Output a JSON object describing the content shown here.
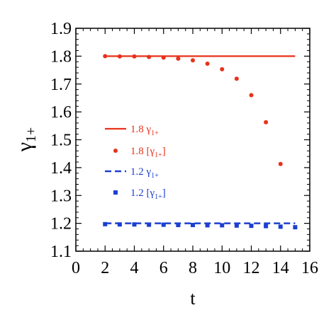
{
  "chart_data": {
    "type": "scatter",
    "xlabel": "t",
    "ylabel_main": "γ",
    "ylabel_sub": "1+",
    "xlim": [
      0,
      16
    ],
    "ylim": [
      1.1,
      1.9
    ],
    "xticks": [
      0,
      2,
      4,
      6,
      8,
      10,
      12,
      14,
      16
    ],
    "xtick_labels": [
      "0",
      "2",
      "4",
      "6",
      "8",
      "10",
      "12",
      "14",
      "16"
    ],
    "yticks": [
      1.1,
      1.2,
      1.3,
      1.4,
      1.5,
      1.6,
      1.7,
      1.8,
      1.9
    ],
    "ytick_labels": [
      "1.1",
      "1.2",
      "1.3",
      "1.4",
      "1.5",
      "1.6",
      "1.7",
      "1.8",
      "1.9"
    ],
    "grid": false,
    "legend_position": "middle-left",
    "series": [
      {
        "name": "1.8 γ1+",
        "legend_main": "1.8 γ",
        "legend_sub": "1+",
        "legend_post": "",
        "style": "solid-line",
        "color": "#e8311a",
        "x": [
          2,
          15
        ],
        "y": [
          1.8,
          1.8
        ]
      },
      {
        "name": "1.8 [γ1+]",
        "legend_main": "1.8 [γ",
        "legend_sub": "1+",
        "legend_post": "]",
        "style": "circle-marker",
        "color": "#e8311a",
        "x": [
          2,
          3,
          4,
          5,
          6,
          7,
          8,
          9,
          10,
          11,
          12,
          13,
          14
        ],
        "y": [
          1.8,
          1.799,
          1.799,
          1.797,
          1.795,
          1.791,
          1.785,
          1.773,
          1.753,
          1.719,
          1.66,
          1.563,
          1.413
        ]
      },
      {
        "name": "1.2 γ1+",
        "legend_main": "1.2 γ",
        "legend_sub": "1+",
        "legend_post": "",
        "style": "dashed-line",
        "color": "#1c3fd0",
        "x": [
          2,
          15
        ],
        "y": [
          1.2,
          1.2
        ]
      },
      {
        "name": "1.2 [γ1+]",
        "legend_main": "1.2 [γ",
        "legend_sub": "1+",
        "legend_post": "]",
        "style": "square-marker",
        "color": "#1c3fd0",
        "x": [
          2,
          3,
          4,
          5,
          6,
          7,
          8,
          9,
          10,
          11,
          12,
          13,
          14,
          15
        ],
        "y": [
          1.197,
          1.196,
          1.196,
          1.195,
          1.195,
          1.194,
          1.194,
          1.193,
          1.193,
          1.192,
          1.191,
          1.19,
          1.188,
          1.186
        ]
      }
    ]
  }
}
